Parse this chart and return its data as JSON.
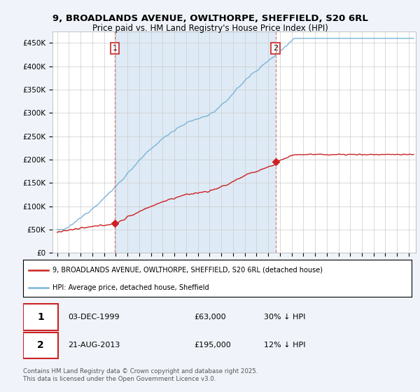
{
  "title_line1": "9, BROADLANDS AVENUE, OWLTHORPE, SHEFFIELD, S20 6RL",
  "title_line2": "Price paid vs. HM Land Registry's House Price Index (HPI)",
  "yticks": [
    0,
    50000,
    100000,
    150000,
    200000,
    250000,
    300000,
    350000,
    400000,
    450000
  ],
  "ytick_labels": [
    "£0",
    "£50K",
    "£100K",
    "£150K",
    "£200K",
    "£250K",
    "£300K",
    "£350K",
    "£400K",
    "£450K"
  ],
  "hpi_color": "#7ab5d9",
  "price_color": "#cc2222",
  "vline_color": "#cc7777",
  "sale1_year": 1999.92,
  "sale1_price": 63000,
  "sale2_year": 2013.64,
  "sale2_price": 195000,
  "legend_line1": "9, BROADLANDS AVENUE, OWLTHORPE, SHEFFIELD, S20 6RL (detached house)",
  "legend_line2": "HPI: Average price, detached house, Sheffield",
  "footer": "Contains HM Land Registry data © Crown copyright and database right 2025.\nThis data is licensed under the Open Government Licence v3.0.",
  "bg_color": "#f0f4fa",
  "plot_bg": "#ffffff",
  "shade_color": "#deeaf5"
}
